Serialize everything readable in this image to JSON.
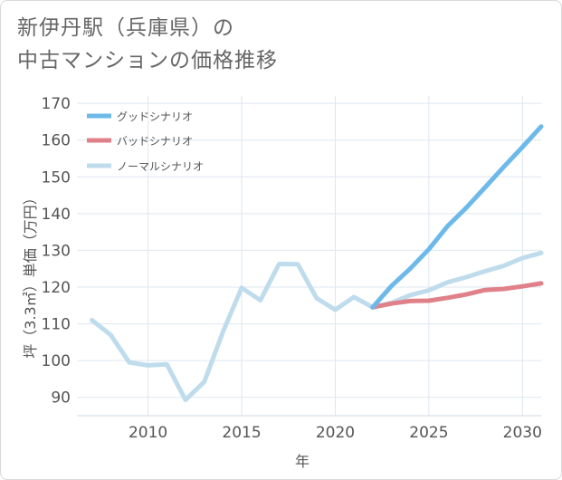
{
  "chart_data": {
    "type": "line",
    "title_line1": "新伊丹駅（兵庫県）の",
    "title_line2": "中古マンションの価格推移",
    "xlabel": "年",
    "ylabel": "坪（3.3㎡）単価（万円）",
    "xlim": [
      2006.2,
      2031
    ],
    "ylim": [
      85,
      172
    ],
    "x_ticks": [
      2010,
      2015,
      2020,
      2025,
      2030
    ],
    "y_ticks": [
      90,
      100,
      110,
      120,
      130,
      140,
      150,
      160,
      170
    ],
    "grid": true,
    "legend_position": "top-left",
    "series": [
      {
        "name": "グッドシナリオ",
        "color": "#6cb9ea",
        "x": [
          2022,
          2023,
          2024,
          2025,
          2026,
          2027,
          2028,
          2029,
          2030,
          2031
        ],
        "y": [
          114.5,
          120.3,
          125,
          130.3,
          136.6,
          141.6,
          147.1,
          152.7,
          158.1,
          163.7
        ]
      },
      {
        "name": "バッドシナリオ",
        "color": "#e0818a",
        "x": [
          2022,
          2023,
          2024,
          2025,
          2026,
          2027,
          2028,
          2029,
          2030,
          2031
        ],
        "y": [
          114.5,
          115.5,
          116.2,
          116.3,
          117.1,
          118,
          119.2,
          119.5,
          120.2,
          121
        ]
      },
      {
        "name": "ノーマルシナリオ",
        "color": "#bfdcec",
        "x": [
          2007,
          2008,
          2009,
          2010,
          2011,
          2012,
          2013,
          2014,
          2015,
          2016,
          2017,
          2018,
          2019,
          2020,
          2021,
          2022,
          2023,
          2024,
          2025,
          2026,
          2027,
          2028,
          2029,
          2030,
          2031
        ],
        "y": [
          111,
          107,
          99.5,
          98.7,
          99,
          89.3,
          94.2,
          107.8,
          119.8,
          116.4,
          126.3,
          126.2,
          117,
          113.8,
          117.3,
          114.5,
          115.7,
          117.8,
          119.1,
          121.3,
          122.7,
          124.3,
          125.8,
          127.9,
          129.3
        ]
      }
    ]
  }
}
